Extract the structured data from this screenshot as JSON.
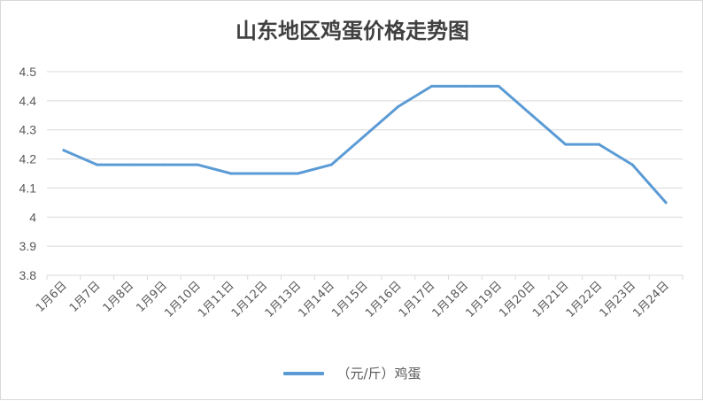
{
  "chart_data": {
    "type": "line",
    "title": "山东地区鸡蛋价格走势图",
    "categories": [
      "1月6日",
      "1月7日",
      "1月8日",
      "1月9日",
      "1月10日",
      "1月11日",
      "1月12日",
      "1月13日",
      "1月14日",
      "1月15日",
      "1月16日",
      "1月17日",
      "1月18日",
      "1月19日",
      "1月20日",
      "1月21日",
      "1月22日",
      "1月23日",
      "1月24日"
    ],
    "series": [
      {
        "name": "（元/斤）鸡蛋",
        "values": [
          4.23,
          4.18,
          4.18,
          4.18,
          4.18,
          4.15,
          4.15,
          4.15,
          4.18,
          4.28,
          4.38,
          4.45,
          4.45,
          4.45,
          4.35,
          4.25,
          4.25,
          4.18,
          4.05
        ],
        "color": "#5b9bd5"
      }
    ],
    "ylim": [
      3.8,
      4.5
    ],
    "yticks": [
      "3.8",
      "3.9",
      "4",
      "4.1",
      "4.2",
      "4.3",
      "4.4",
      "4.5"
    ],
    "grid": true,
    "legend_position": "bottom"
  }
}
